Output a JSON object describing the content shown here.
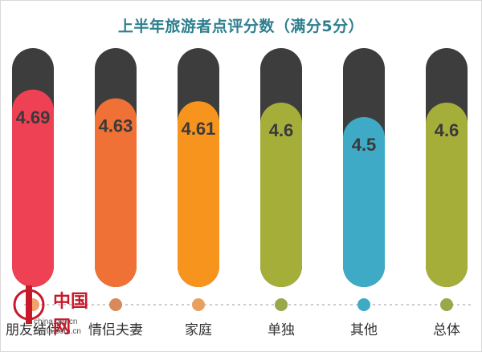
{
  "title": "上半年旅游者点评分数（满分5分）",
  "chart_data": {
    "type": "bar",
    "title": "上半年旅游者点评分数（满分5分）",
    "categories": [
      "朋友结伴",
      "情侣夫妻",
      "家庭",
      "单独",
      "其他",
      "总体"
    ],
    "values": [
      4.69,
      4.63,
      4.61,
      4.6,
      4.5,
      4.6
    ],
    "ylim": [
      0,
      5
    ],
    "grid": false,
    "legend": "none",
    "bar_colors": [
      "#ee4154",
      "#f07135",
      "#f7941e",
      "#a6ae3a",
      "#3eaac6",
      "#a6ae3a"
    ],
    "dot_colors": [
      "#f2a26a",
      "#d98a5c",
      "#e8a060",
      "#99a84a",
      "#3eaac6",
      "#99a84a"
    ],
    "track_color": "#3d3d3d"
  },
  "watermark": {
    "text": "中国网",
    "url1": "china.org.cn",
    "url2": "china.com.cn"
  }
}
